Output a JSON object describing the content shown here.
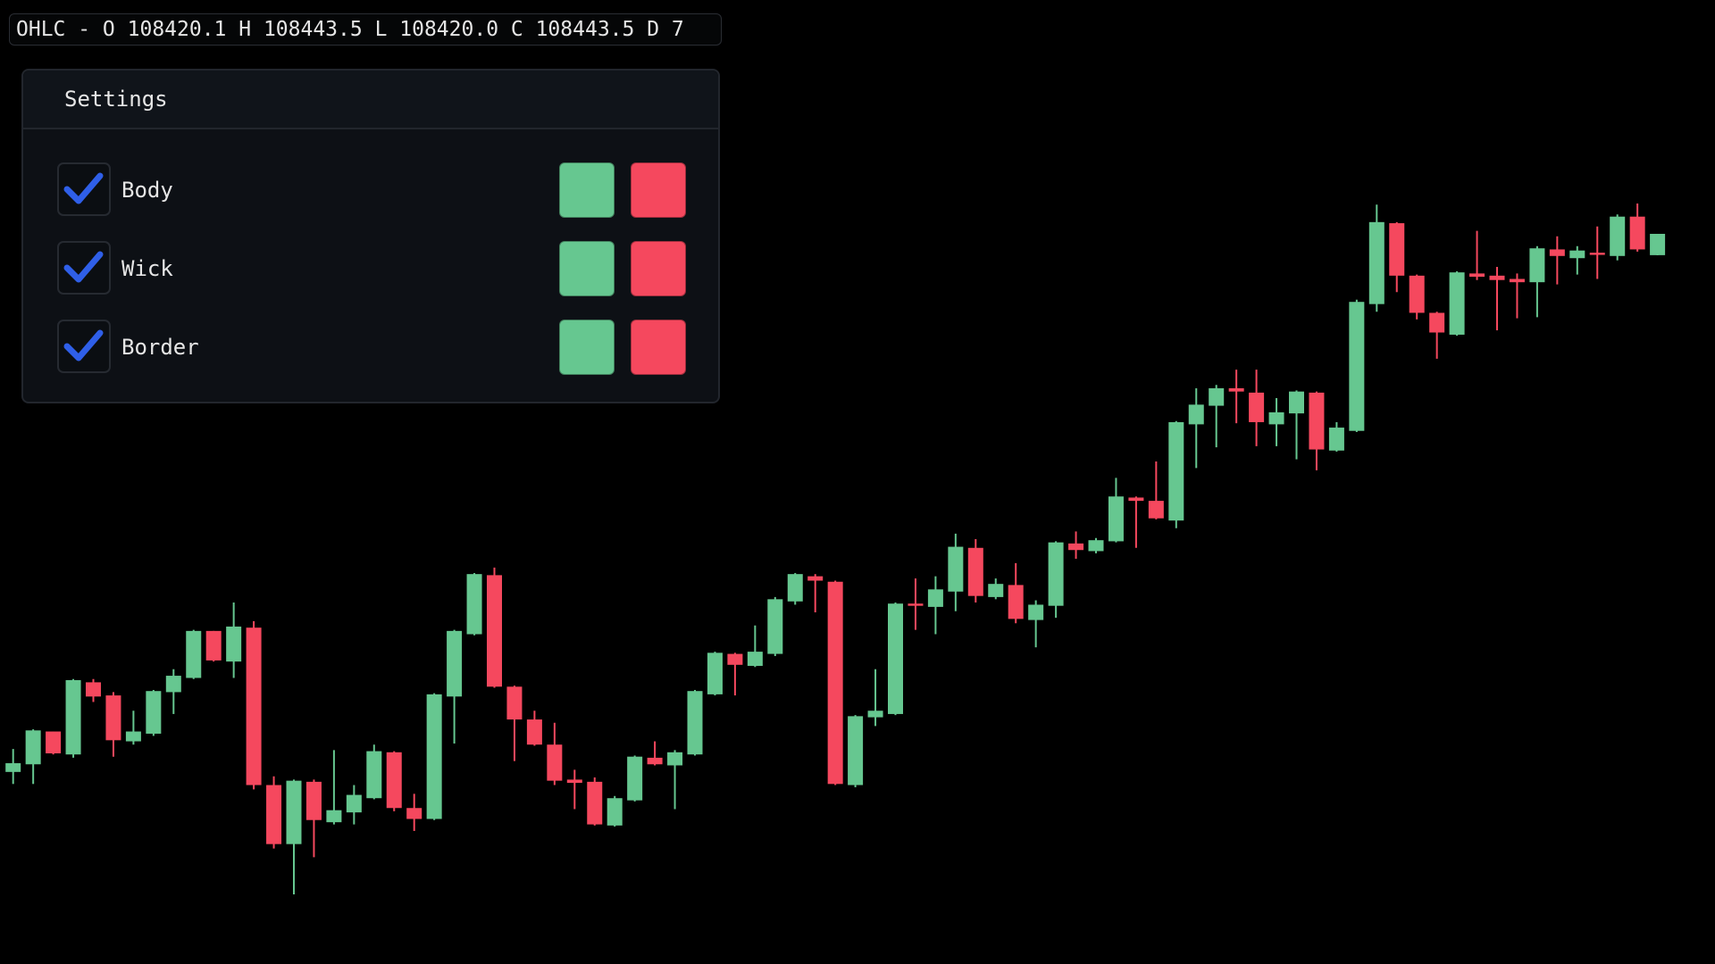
{
  "ohlc_legend": "OHLC - O 108420.1 H 108443.5 L 108420.0 C 108443.5 D 7",
  "settings": {
    "title": "Settings",
    "items": [
      {
        "label": "Body",
        "checked": true,
        "up_color": "#66c790",
        "down_color": "#f5485e"
      },
      {
        "label": "Wick",
        "checked": true,
        "up_color": "#66c790",
        "down_color": "#f5485e"
      },
      {
        "label": "Border",
        "checked": true,
        "up_color": "#66c790",
        "down_color": "#f5485e"
      }
    ]
  },
  "chart_data": {
    "type": "candlestick",
    "up_color": "#66c790",
    "down_color": "#f5485e",
    "open": [
      107852.8,
      107861.2,
      107897.2,
      107872,
      107951.2,
      107936.8,
      107886.4,
      107894.8,
      107940.4,
      107956,
      108007.6,
      107974,
      108011.2,
      107838.4,
      107773.6,
      107842,
      107797.6,
      107808.4,
      107824,
      107874.4,
      107813.2,
      107801.2,
      107935.6,
      108004,
      108068.8,
      107946.4,
      107910.4,
      107882.8,
      107844.4,
      107842,
      107794,
      107821.6,
      107868.4,
      107860,
      107872,
      107938,
      107982.4,
      107969.2,
      107982.4,
      108040,
      108067.6,
      108061.6,
      107838.4,
      107912.8,
      107916.4,
      108037.6,
      108034,
      108050.8,
      108098.8,
      108044.8,
      108058,
      108019.6,
      108035.2,
      108103.6,
      108095.2,
      108106,
      108154,
      108150.4,
      108128.8,
      108234.4,
      108254.8,
      108274,
      108269.2,
      108234.4,
      108246.4,
      108269.2,
      108205.6,
      108227.2,
      108366.4,
      108455.2,
      108397.6,
      108356.8,
      108332.8,
      108400,
      108397.6,
      108394,
      108390.4,
      108426.4,
      108416.8,
      108422.8,
      108419.2,
      108462.4,
      108420.1
    ],
    "high": [
      107878,
      107899.6,
      107897.2,
      107954.8,
      107954.8,
      107940.4,
      107920,
      107942.8,
      107965.6,
      108008.8,
      108007.6,
      108038.8,
      108018.4,
      107848,
      107844.4,
      107844.4,
      107876.8,
      107838.4,
      107882.8,
      107875.6,
      107828.8,
      107939.2,
      108008.8,
      108071.2,
      108077.2,
      107947.6,
      107920,
      107906.8,
      107855.2,
      107846.8,
      107826.4,
      107870.8,
      107886.4,
      107876.8,
      107942.8,
      107984.8,
      107983.6,
      108013.6,
      108044.8,
      108071.2,
      108070,
      108062.8,
      107915.2,
      107965.6,
      108038.8,
      108065.2,
      108067.6,
      108114.4,
      108108.4,
      108065.2,
      108082,
      108041.2,
      108106,
      108116.8,
      108109.6,
      108175.6,
      108155.2,
      108193.6,
      108238,
      108274,
      108277.6,
      108294.4,
      108294.4,
      108263.2,
      108271.6,
      108270.4,
      108236.8,
      108371.2,
      108475.6,
      108456.4,
      108398.8,
      108358,
      108402.4,
      108446.8,
      108407.2,
      108400,
      108430,
      108440.8,
      108430,
      108451.6,
      108464.8,
      108476.8,
      108443.5
    ],
    "low": [
      107839.6,
      107839.6,
      107872,
      107868.4,
      107929.6,
      107869.6,
      107882.8,
      107892.4,
      107916.4,
      107954.8,
      107974,
      107956,
      107833.6,
      107768.8,
      107718.4,
      107759.2,
      107795.2,
      107795.2,
      107822.8,
      107809.6,
      107788,
      107800,
      107884,
      108002.8,
      107945.2,
      107864.8,
      107881.6,
      107838.4,
      107812,
      107794,
      107792.8,
      107820.4,
      107860,
      107812,
      107870.8,
      107936.8,
      107936.8,
      107968,
      107980,
      108036.4,
      108028,
      107838.4,
      107836,
      107903.2,
      107915.2,
      108008.8,
      108004,
      108029.2,
      108038.8,
      108042.4,
      108016,
      107989.6,
      108022,
      108086.8,
      108092.8,
      108104.8,
      108098.8,
      108130,
      108120.4,
      108186.4,
      108209.2,
      108235.6,
      108210.4,
      108210.4,
      108196,
      108184,
      108204.4,
      108226,
      108358,
      108379.6,
      108349.6,
      108306.4,
      108331.6,
      108392.8,
      108337.6,
      108350.8,
      108352,
      108388,
      108398.8,
      108394,
      108414.4,
      108424,
      108420
    ],
    "close": [
      107862.4,
      107898.4,
      107873.2,
      107953.6,
      107935.6,
      107887.6,
      107897.2,
      107941.6,
      107958.4,
      108007.6,
      107975.2,
      108012.4,
      107838.4,
      107773.6,
      107843.2,
      107800,
      107810.8,
      107827.6,
      107875.6,
      107813.2,
      107801.2,
      107938,
      108007.6,
      108070,
      107946.4,
      107910.4,
      107882.8,
      107843.2,
      107840.8,
      107795.2,
      107824,
      107869.6,
      107861.2,
      107874.4,
      107941.6,
      107983.6,
      107970.4,
      107984.8,
      108042.4,
      108070,
      108062.8,
      107839.6,
      107914,
      107920,
      108037.6,
      108035.2,
      108053.2,
      108100,
      108046,
      108059.2,
      108020.8,
      108036.4,
      108104.8,
      108096.4,
      108107.2,
      108155.2,
      108150.4,
      108131.2,
      108236.8,
      108256,
      108274,
      108270.4,
      108236.8,
      108247.6,
      108270.4,
      108206.8,
      108230.8,
      108368.8,
      108456.4,
      108397.6,
      108356.8,
      108335.2,
      108401.2,
      108396.4,
      108392.8,
      108390.4,
      108427.6,
      108419.2,
      108425.2,
      108420.4,
      108462.4,
      108426.4,
      108443.5
    ]
  }
}
